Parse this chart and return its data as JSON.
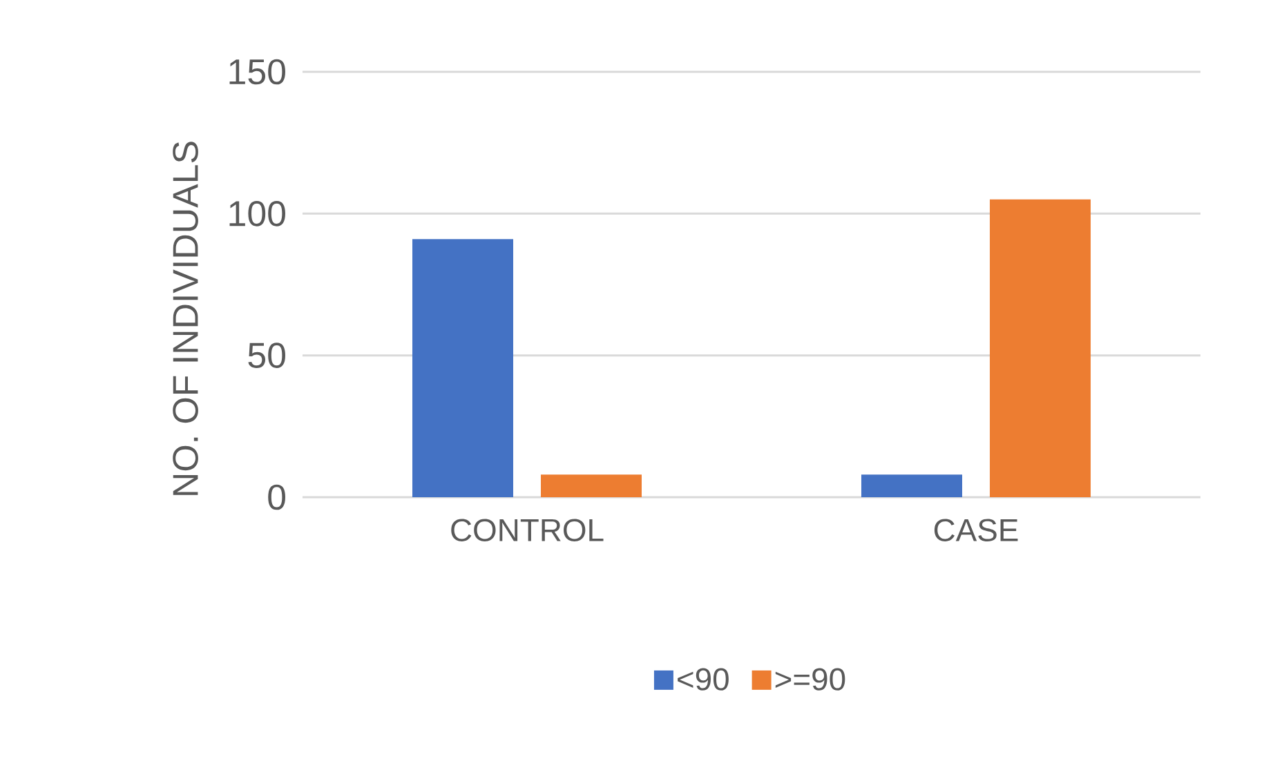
{
  "chart_data": {
    "type": "bar",
    "ylabel": "NO. OF INDIVIDUALS",
    "categories": [
      "CONTROL",
      "CASE"
    ],
    "series": [
      {
        "name": "<90",
        "color": "#4472c4",
        "values": [
          91,
          8
        ]
      },
      {
        "name": ">=90",
        "color": "#ed7d31",
        "values": [
          8,
          105
        ]
      }
    ],
    "ylim": [
      0,
      150
    ],
    "yticks": [
      0,
      50,
      100,
      150
    ],
    "grid": "y",
    "legend": "bottom"
  }
}
